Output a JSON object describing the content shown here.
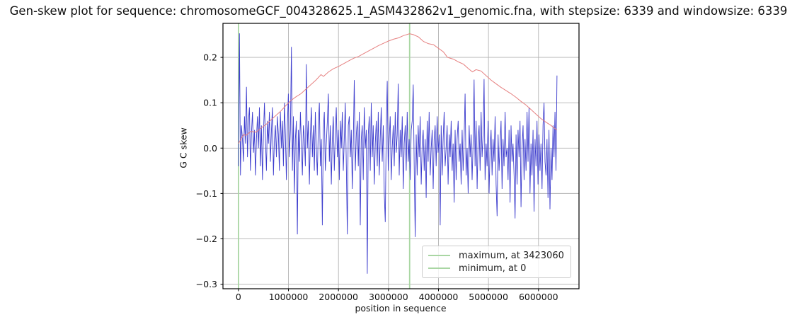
{
  "chart_data": {
    "type": "line",
    "title": "Gen-skew plot for sequence: chromosomeGCF_004328625.1_ASM432862v1_genomic.fna, with stepsize: 6339 and windowsize: 6339",
    "xlabel": "position in sequence",
    "ylabel": "G C skew",
    "xlim": [
      -310000,
      6810000
    ],
    "ylim": [
      -0.31,
      0.275
    ],
    "grid": true,
    "legend_position": "lower right",
    "colors": {
      "window_skew": "#3c3ccd",
      "cumulative_skew": "#e68080",
      "vline_green": "#a9d6a3",
      "grid": "#b3b3b3",
      "spine": "#000000"
    },
    "xticks": {
      "values": [
        0,
        1000000,
        2000000,
        3000000,
        4000000,
        5000000,
        6000000
      ],
      "labels": [
        "0",
        "1000000",
        "2000000",
        "3000000",
        "4000000",
        "5000000",
        "6000000"
      ]
    },
    "yticks": {
      "values": [
        -0.3,
        -0.2,
        -0.1,
        0.0,
        0.1,
        0.2
      ],
      "labels": [
        "−0.3",
        "−0.2",
        "−0.1",
        "0.0",
        "0.1",
        "0.2"
      ]
    },
    "vlines": [
      {
        "name": "max-vline",
        "x": 3423060,
        "label": "maximum, at 3423060"
      },
      {
        "name": "min-vline",
        "x": 0,
        "label": "minimum, at 0"
      }
    ],
    "series": [
      {
        "name": "window_skew",
        "x_start": 0,
        "x_end": 6370000,
        "y": [
          -0.04,
          0.253,
          -0.06,
          0.05,
          0.02,
          -0.03,
          0.07,
          0.01,
          0.135,
          -0.02,
          0.06,
          0.09,
          -0.05,
          0.03,
          0.08,
          -0.01,
          0.04,
          -0.06,
          0.02,
          0.07,
          0.0,
          0.09,
          -0.04,
          0.05,
          -0.07,
          0.03,
          0.1,
          0.02,
          -0.05,
          0.06,
          0.01,
          0.08,
          -0.03,
          0.04,
          0.09,
          -0.06,
          0.02,
          0.05,
          -0.02,
          0.07,
          0.03,
          -0.05,
          0.08,
          0.0,
          0.06,
          -0.04,
          0.1,
          0.03,
          -0.07,
          0.05,
          0.12,
          -0.02,
          0.04,
          0.223,
          -0.05,
          0.07,
          -0.1,
          0.02,
          0.06,
          -0.19,
          0.04,
          -0.03,
          0.08,
          0.01,
          -0.06,
          0.05,
          0.02,
          -0.04,
          0.185,
          0.0,
          0.06,
          -0.08,
          0.03,
          0.09,
          -0.02,
          0.05,
          -0.05,
          0.08,
          0.0,
          -0.06,
          0.05,
          0.1,
          -0.04,
          0.02,
          -0.17,
          0.04,
          0.08,
          -0.05,
          0.01,
          0.06,
          0.12,
          -0.03,
          0.05,
          -0.08,
          0.02,
          0.07,
          -0.05,
          0.03,
          0.09,
          -0.02,
          0.04,
          -0.07,
          0.06,
          0.0,
          0.08,
          -0.05,
          0.02,
          0.1,
          -0.04,
          -0.19,
          0.05,
          0.07,
          -0.02,
          0.04,
          -0.09,
          0.01,
          0.15,
          -0.05,
          0.03,
          0.06,
          -0.04,
          0.08,
          -0.17,
          0.02,
          0.05,
          -0.07,
          0.09,
          0.0,
          0.04,
          -0.277,
          0.03,
          0.07,
          -0.05,
          0.1,
          -0.02,
          0.05,
          -0.08,
          0.01,
          0.06,
          -0.04,
          0.08,
          -0.06,
          0.02,
          0.09,
          -0.03,
          0.05,
          -0.1,
          -0.163,
          0.04,
          0.148,
          -0.05,
          0.02,
          0.07,
          -0.07,
          0.0,
          0.05,
          -0.04,
          0.08,
          -0.01,
          0.03,
          0.142,
          -0.06,
          0.04,
          -0.02,
          0.07,
          -0.09,
          0.01,
          0.05,
          -0.05,
          0.08,
          -0.03,
          0.02,
          -0.07,
          0.04,
          0.06,
          0.14,
          -0.04,
          -0.196,
          0.03,
          -0.06,
          0.05,
          -0.02,
          0.07,
          -0.08,
          0.01,
          0.04,
          -0.05,
          0.02,
          -0.11,
          0.06,
          -0.03,
          0.08,
          -0.06,
          0.0,
          0.04,
          -0.09,
          0.02,
          0.05,
          -0.04,
          0.07,
          -0.01,
          0.03,
          -0.17,
          0.05,
          -0.06,
          0.02,
          0.08,
          -0.04,
          0.0,
          0.05,
          -0.08,
          0.03,
          -0.02,
          0.06,
          -0.05,
          0.01,
          -0.12,
          0.04,
          -0.07,
          0.02,
          0.06,
          -0.03,
          0.01,
          -0.08,
          0.04,
          -0.05,
          0.02,
          0.12,
          -0.06,
          0.0,
          -0.1,
          0.05,
          -0.02,
          0.03,
          -0.07,
          0.01,
          0.151,
          -0.04,
          0.06,
          -0.09,
          0.02,
          0.05,
          -0.05,
          0.08,
          -0.02,
          0.03,
          0.152,
          -0.07,
          0.01,
          -0.04,
          0.06,
          -0.1,
          0.0,
          0.04,
          -0.06,
          0.02,
          -0.03,
          0.07,
          -0.08,
          -0.15,
          0.03,
          -0.05,
          0.01,
          0.06,
          -0.09,
          0.02,
          -0.04,
          0.08,
          -0.02,
          0.0,
          -0.07,
          0.04,
          -0.12,
          0.05,
          -0.03,
          0.01,
          -0.06,
          -0.155,
          0.03,
          -0.08,
          0.04,
          -0.02,
          0.06,
          -0.13,
          0.0,
          0.05,
          -0.07,
          0.02,
          -0.05,
          0.08,
          -0.03,
          0.09,
          -0.1,
          0.01,
          -0.06,
          0.04,
          -0.14,
          0.02,
          -0.04,
          0.06,
          -0.08,
          0.03,
          -0.05,
          0.01,
          -0.09,
          0.05,
          0.1,
          -0.03,
          -0.06,
          0.02,
          -0.11,
          0.04,
          -0.135,
          0.0,
          -0.07,
          0.05,
          -0.02,
          0.08,
          -0.05,
          0.16
        ]
      },
      {
        "name": "cumulative_skew",
        "points": [
          [
            0,
            0.01
          ],
          [
            100000,
            0.03
          ],
          [
            150000,
            0.028
          ],
          [
            250000,
            0.037
          ],
          [
            350000,
            0.035
          ],
          [
            450000,
            0.044
          ],
          [
            550000,
            0.052
          ],
          [
            650000,
            0.062
          ],
          [
            750000,
            0.072
          ],
          [
            850000,
            0.082
          ],
          [
            950000,
            0.094
          ],
          [
            1050000,
            0.105
          ],
          [
            1150000,
            0.113
          ],
          [
            1250000,
            0.12
          ],
          [
            1350000,
            0.13
          ],
          [
            1450000,
            0.14
          ],
          [
            1550000,
            0.15
          ],
          [
            1650000,
            0.162
          ],
          [
            1700000,
            0.158
          ],
          [
            1800000,
            0.168
          ],
          [
            1900000,
            0.175
          ],
          [
            2000000,
            0.18
          ],
          [
            2100000,
            0.186
          ],
          [
            2200000,
            0.192
          ],
          [
            2300000,
            0.198
          ],
          [
            2400000,
            0.202
          ],
          [
            2500000,
            0.208
          ],
          [
            2600000,
            0.214
          ],
          [
            2700000,
            0.22
          ],
          [
            2800000,
            0.226
          ],
          [
            2900000,
            0.231
          ],
          [
            3000000,
            0.236
          ],
          [
            3100000,
            0.24
          ],
          [
            3200000,
            0.243
          ],
          [
            3300000,
            0.248
          ],
          [
            3423060,
            0.252
          ],
          [
            3500000,
            0.25
          ],
          [
            3600000,
            0.245
          ],
          [
            3700000,
            0.235
          ],
          [
            3800000,
            0.23
          ],
          [
            3900000,
            0.228
          ],
          [
            4000000,
            0.22
          ],
          [
            4100000,
            0.212
          ],
          [
            4180000,
            0.2
          ],
          [
            4300000,
            0.196
          ],
          [
            4400000,
            0.19
          ],
          [
            4500000,
            0.185
          ],
          [
            4600000,
            0.175
          ],
          [
            4680000,
            0.168
          ],
          [
            4750000,
            0.173
          ],
          [
            4850000,
            0.17
          ],
          [
            4950000,
            0.16
          ],
          [
            5050000,
            0.15
          ],
          [
            5150000,
            0.142
          ],
          [
            5250000,
            0.134
          ],
          [
            5350000,
            0.127
          ],
          [
            5450000,
            0.12
          ],
          [
            5550000,
            0.112
          ],
          [
            5650000,
            0.103
          ],
          [
            5750000,
            0.095
          ],
          [
            5850000,
            0.085
          ],
          [
            5950000,
            0.075
          ],
          [
            6050000,
            0.065
          ],
          [
            6150000,
            0.057
          ],
          [
            6250000,
            0.05
          ],
          [
            6320000,
            0.044
          ],
          [
            6370000,
            0.04
          ]
        ]
      }
    ]
  }
}
